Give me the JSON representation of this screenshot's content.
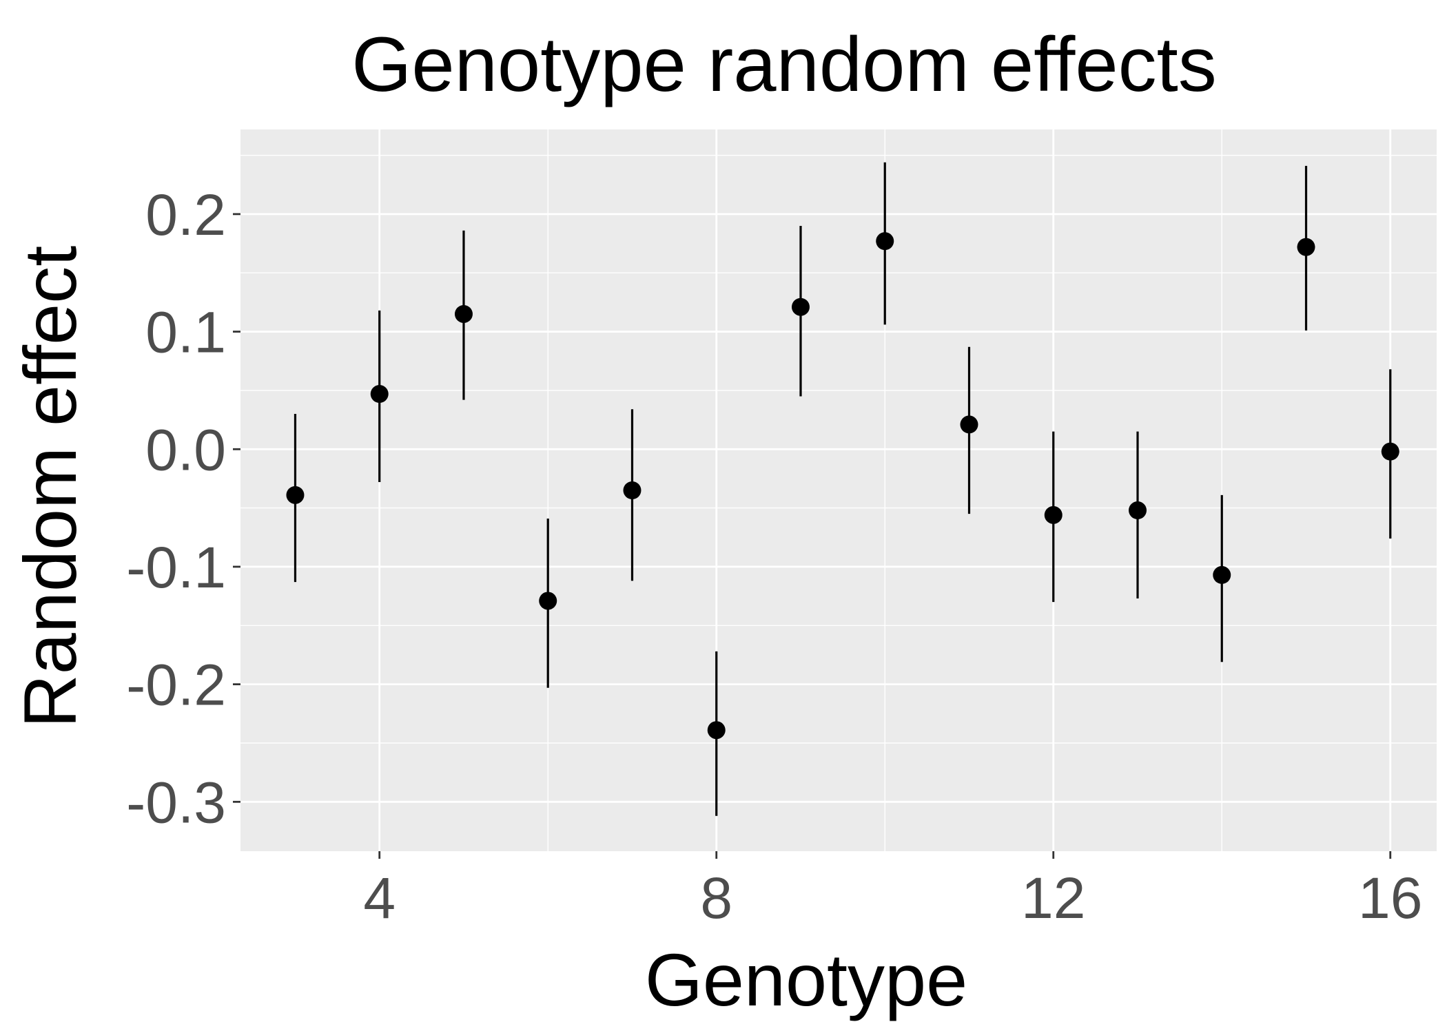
{
  "chart_data": {
    "type": "scatter",
    "title": "Genotype random effects",
    "xlabel": "Genotype",
    "ylabel": "Random effect",
    "xlim": [
      2.35,
      16.55
    ],
    "ylim": [
      -0.342,
      0.272
    ],
    "x_ticks": [
      4,
      8,
      12,
      16
    ],
    "x_tick_labels": [
      "4",
      "8",
      "12",
      "16"
    ],
    "y_ticks": [
      0.2,
      0.1,
      0.0,
      -0.1,
      -0.2,
      -0.3
    ],
    "y_tick_labels": [
      "0.2",
      "0.1",
      "0.0",
      "-0.1",
      "-0.2",
      "-0.3"
    ],
    "grid": true,
    "legend": "none",
    "point_color": "#000000",
    "panel_background": "#EBEBEB",
    "gridline_color": "#FFFFFF",
    "tick_label_color": "#4D4D4D",
    "series": [
      {
        "x": [
          3,
          4,
          5,
          6,
          7,
          8,
          9,
          10,
          11,
          12,
          13,
          14,
          15,
          16
        ],
        "y": [
          -0.039,
          0.047,
          0.115,
          -0.129,
          -0.035,
          -0.239,
          0.121,
          0.177,
          0.021,
          -0.056,
          -0.052,
          -0.107,
          0.172,
          -0.002
        ],
        "error_low": [
          -0.113,
          -0.028,
          0.042,
          -0.203,
          -0.112,
          -0.312,
          0.045,
          0.106,
          -0.055,
          -0.13,
          -0.127,
          -0.181,
          0.101,
          -0.076
        ],
        "error_high": [
          0.03,
          0.118,
          0.186,
          -0.059,
          0.034,
          -0.172,
          0.19,
          0.244,
          0.087,
          0.015,
          0.015,
          -0.039,
          0.241,
          0.068
        ]
      }
    ]
  }
}
